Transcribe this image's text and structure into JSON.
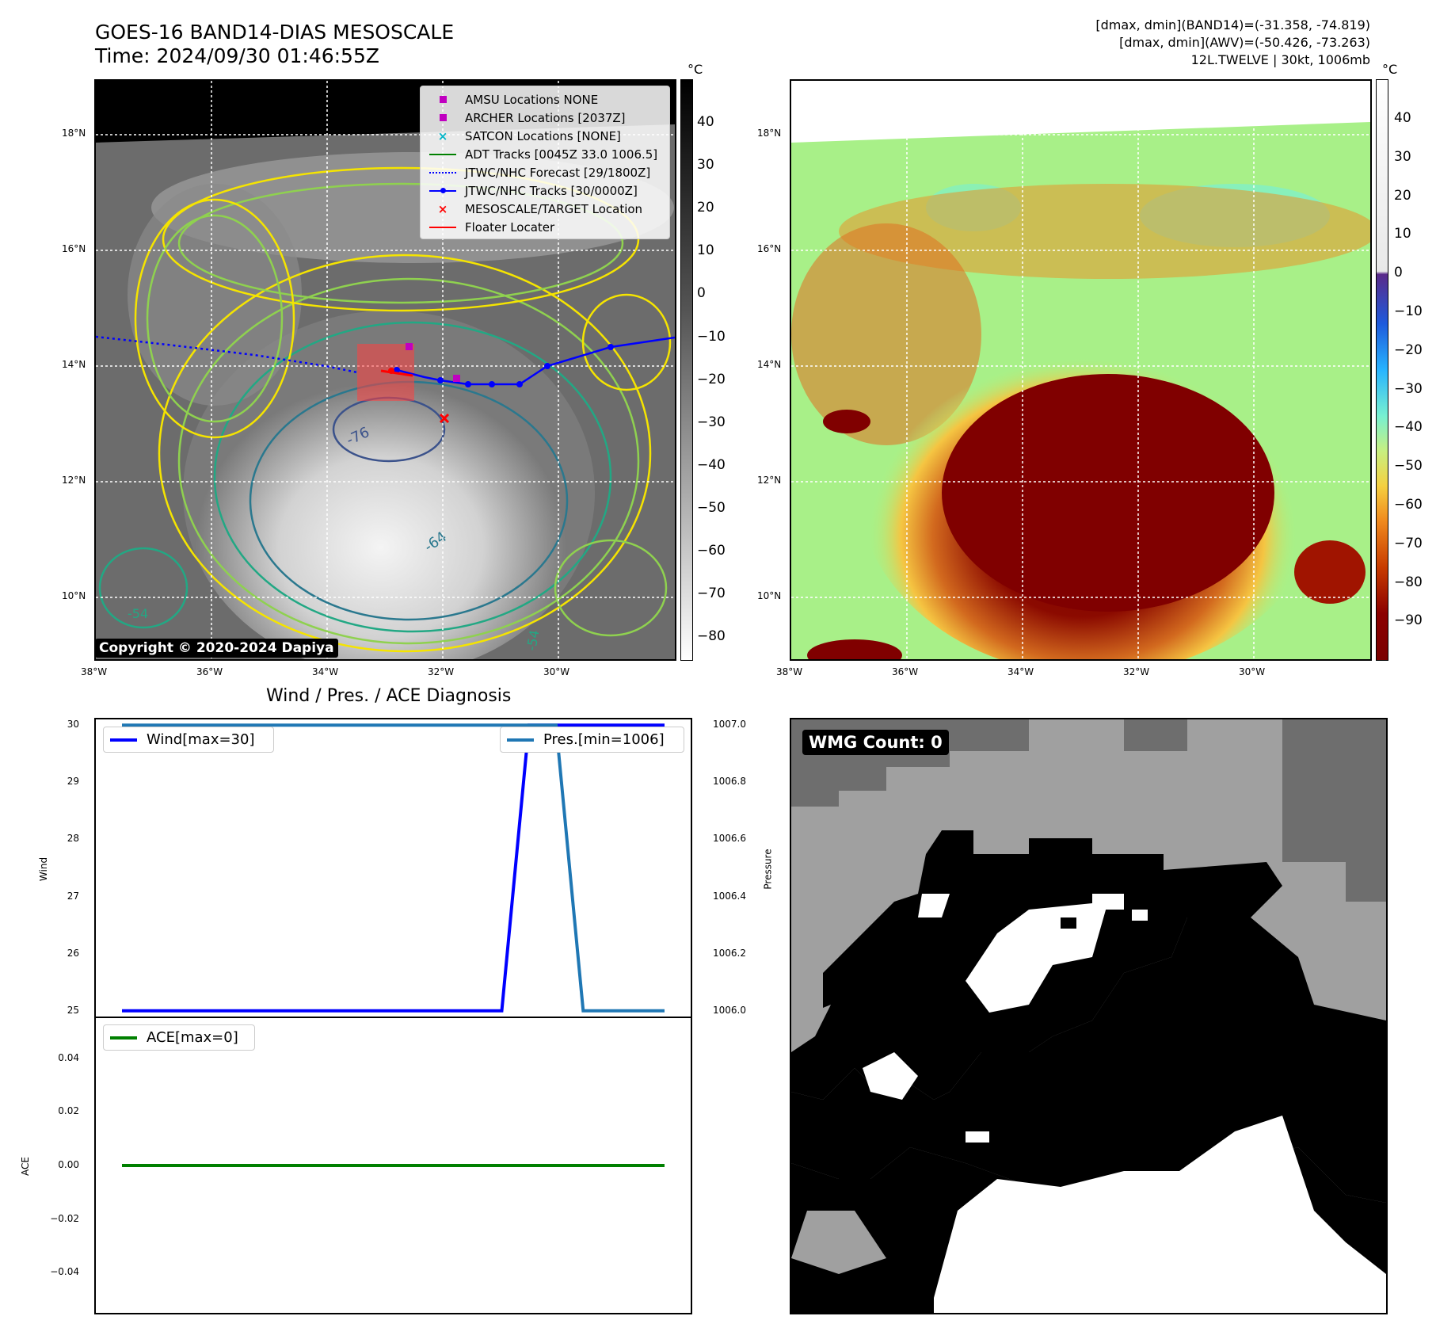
{
  "header": {
    "title_line1": "GOES-16 BAND14-DIAS MESOSCALE",
    "title_line2": "Time: 2024/09/30 01:46:55Z",
    "right_line1": "[dmax, dmin](BAND14)=(-31.358, -74.819)",
    "right_line2": "[dmax, dmin](AWV)=(-50.426, -73.263)",
    "right_line3": "12L.TWELVE | 30kt, 1006mb"
  },
  "map": {
    "lat_labels": [
      "18°N",
      "16°N",
      "14°N",
      "12°N",
      "10°N"
    ],
    "lon_labels": [
      "38°W",
      "36°W",
      "34°W",
      "32°W",
      "30°W"
    ],
    "copyright": "Copyright © 2020-2024 Dapiya",
    "contour_labels": [
      "-76",
      "-64",
      "-54",
      "-54"
    ]
  },
  "colorbar_left": {
    "unit": "°C",
    "ticks": [
      "40",
      "30",
      "20",
      "10",
      "0",
      "−10",
      "−20",
      "−30",
      "−40",
      "−50",
      "−60",
      "−70",
      "−80"
    ]
  },
  "colorbar_right": {
    "unit": "°C",
    "ticks": [
      "40",
      "30",
      "20",
      "10",
      "0",
      "−10",
      "−20",
      "−30",
      "−40",
      "−50",
      "−60",
      "−70",
      "−80",
      "−90"
    ]
  },
  "legend": {
    "items": [
      {
        "label": "AMSU Locations NONE",
        "marker": "square",
        "color": "#c000c0"
      },
      {
        "label": "ARCHER Locations [2037Z]",
        "marker": "square",
        "color": "#c000c0"
      },
      {
        "label": "SATCON Locations [NONE]",
        "marker": "x",
        "color": "#00b5c8"
      },
      {
        "label": "ADT Tracks [0045Z 33.0 1006.5]",
        "marker": "line",
        "color": "#008000"
      },
      {
        "label": "JTWC/NHC Forecast [29/1800Z]",
        "marker": "dotted",
        "color": "#0000ff"
      },
      {
        "label": "JTWC/NHC Tracks [30/0000Z]",
        "marker": "line-dot",
        "color": "#0000ff"
      },
      {
        "label": "MESOSCALE/TARGET Location",
        "marker": "x",
        "color": "#ff0000"
      },
      {
        "label": "Floater Locater",
        "marker": "line",
        "color": "#ff0000"
      }
    ]
  },
  "diagnosis": {
    "title": "Wind / Pres. / ACE Diagnosis",
    "wind_ylabel": "Wind",
    "pres_ylabel": "Pressure",
    "ace_ylabel": "ACE",
    "wind_legend": "Wind[max=30]",
    "pres_legend": "Pres.[min=1006]",
    "ace_legend": "ACE[max=0]",
    "wind_ticks": [
      "30",
      "29",
      "28",
      "27",
      "26",
      "25"
    ],
    "pres_ticks": [
      "1007.0",
      "1006.8",
      "1006.6",
      "1006.4",
      "1006.2",
      "1006.0"
    ],
    "ace_ticks": [
      "0.04",
      "0.02",
      "0.00",
      "−0.02",
      "−0.04"
    ]
  },
  "wmg": {
    "label": "WMG Count: 0"
  },
  "chart_data": [
    {
      "type": "line",
      "title": "Wind / Pres. / ACE Diagnosis",
      "ylabel": "Wind",
      "ylim": [
        24.9,
        30.1
      ],
      "series": [
        {
          "name": "Wind[max=30]",
          "color": "#0000ff",
          "x": [
            0,
            1,
            2,
            3,
            4,
            5,
            6,
            7,
            8,
            9,
            10,
            11,
            12,
            13,
            14,
            15,
            16,
            17,
            18,
            19,
            20
          ],
          "values": [
            25,
            25,
            25,
            25,
            25,
            25,
            25,
            25,
            25,
            25,
            25,
            25,
            25,
            25,
            25,
            30,
            30,
            30,
            30,
            30,
            30
          ]
        }
      ]
    },
    {
      "type": "line",
      "ylabel": "Pressure",
      "ylim": [
        1005.98,
        1007.02
      ],
      "series": [
        {
          "name": "Pres.[min=1006]",
          "color": "#1f77b4",
          "x": [
            0,
            1,
            2,
            3,
            4,
            5,
            6,
            7,
            8,
            9,
            10,
            11,
            12,
            13,
            14,
            15,
            16,
            17,
            18,
            19,
            20
          ],
          "values": [
            1007,
            1007,
            1007,
            1007,
            1007,
            1007,
            1007,
            1007,
            1007,
            1007,
            1007,
            1007,
            1007,
            1007,
            1007,
            1007,
            1007,
            1006,
            1006,
            1006,
            1006
          ]
        }
      ]
    },
    {
      "type": "line",
      "ylabel": "ACE",
      "ylim": [
        -0.055,
        0.055
      ],
      "series": [
        {
          "name": "ACE[max=0]",
          "color": "#008000",
          "x": [
            0,
            20
          ],
          "values": [
            0,
            0
          ]
        }
      ]
    }
  ]
}
